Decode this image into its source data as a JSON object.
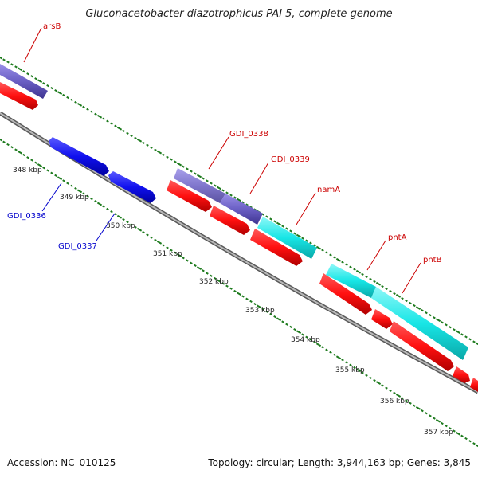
{
  "title": "Gluconacetobacter diazotrophicus PAI 5, complete genome",
  "footer": {
    "accession": "Accession: NC_010125",
    "summary": "Topology: circular; Length: 3,944,163 bp; Genes: 3,845"
  },
  "colors": {
    "backbone": "#8a8a8a",
    "scale_ticks": "#1e7b1e",
    "forward_cds": "#6a5fc4",
    "forward_cds_highlight": "#8a80dc",
    "reverse_cds_track": "#ff1010",
    "reverse_gene": "#1010ee",
    "rrna_like": "#18e6e6",
    "forward_label": "#cc0000",
    "reverse_label": "#0000cc"
  },
  "scale": {
    "unit": "kbp",
    "ticks": [
      "348 kbp",
      "349 kbp",
      "350 kbp",
      "351 kbp",
      "352 kbp",
      "353 kbp",
      "354 kbp",
      "355 kbp",
      "356 kbp",
      "357 kbp"
    ]
  },
  "features": [
    {
      "name": "arsB",
      "strand": "forward",
      "type": "cds",
      "color": "forward_cds"
    },
    {
      "name": "GDI_0336",
      "strand": "reverse",
      "type": "gene",
      "color": "reverse_gene"
    },
    {
      "name": "GDI_0337",
      "strand": "reverse",
      "type": "gene",
      "color": "reverse_gene"
    },
    {
      "name": "GDI_0338",
      "strand": "forward",
      "type": "cds",
      "color": "forward_cds_highlight"
    },
    {
      "name": "GDI_0339",
      "strand": "forward",
      "type": "cds",
      "color": "forward_cds"
    },
    {
      "name": "namA",
      "strand": "forward",
      "type": "cds",
      "color": "rrna_like"
    },
    {
      "name": "pntA",
      "strand": "forward",
      "type": "cds",
      "color": "rrna_like"
    },
    {
      "name": "pntB",
      "strand": "forward",
      "type": "cds",
      "color": "rrna_like"
    }
  ]
}
